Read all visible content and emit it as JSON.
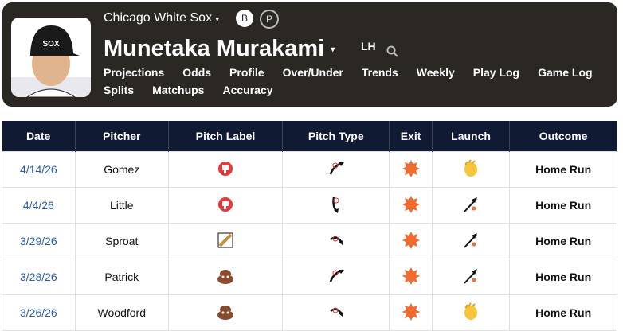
{
  "header": {
    "team": "Chicago White Sox",
    "badges": [
      "B",
      "P"
    ],
    "player": "Munetaka Murakami",
    "hand": "LH",
    "nav": [
      "Projections",
      "Odds",
      "Profile",
      "Over/Under",
      "Trends",
      "Weekly",
      "Play Log",
      "Game Log",
      "Splits",
      "Matchups",
      "Accuracy"
    ]
  },
  "table": {
    "columns": [
      "Date",
      "Pitcher",
      "Pitch Label",
      "Pitch Type",
      "Exit",
      "Launch",
      "Outcome"
    ],
    "rows": [
      [
        "4/14/26",
        "Gomez",
        "Home Run"
      ],
      [
        "4/4/26",
        "Little",
        "Home Run"
      ],
      [
        "3/29/26",
        "Sproat",
        "Home Run"
      ],
      [
        "3/28/26",
        "Patrick",
        "Home Run"
      ],
      [
        "3/26/26",
        "Woodford",
        "Home Run"
      ]
    ]
  }
}
